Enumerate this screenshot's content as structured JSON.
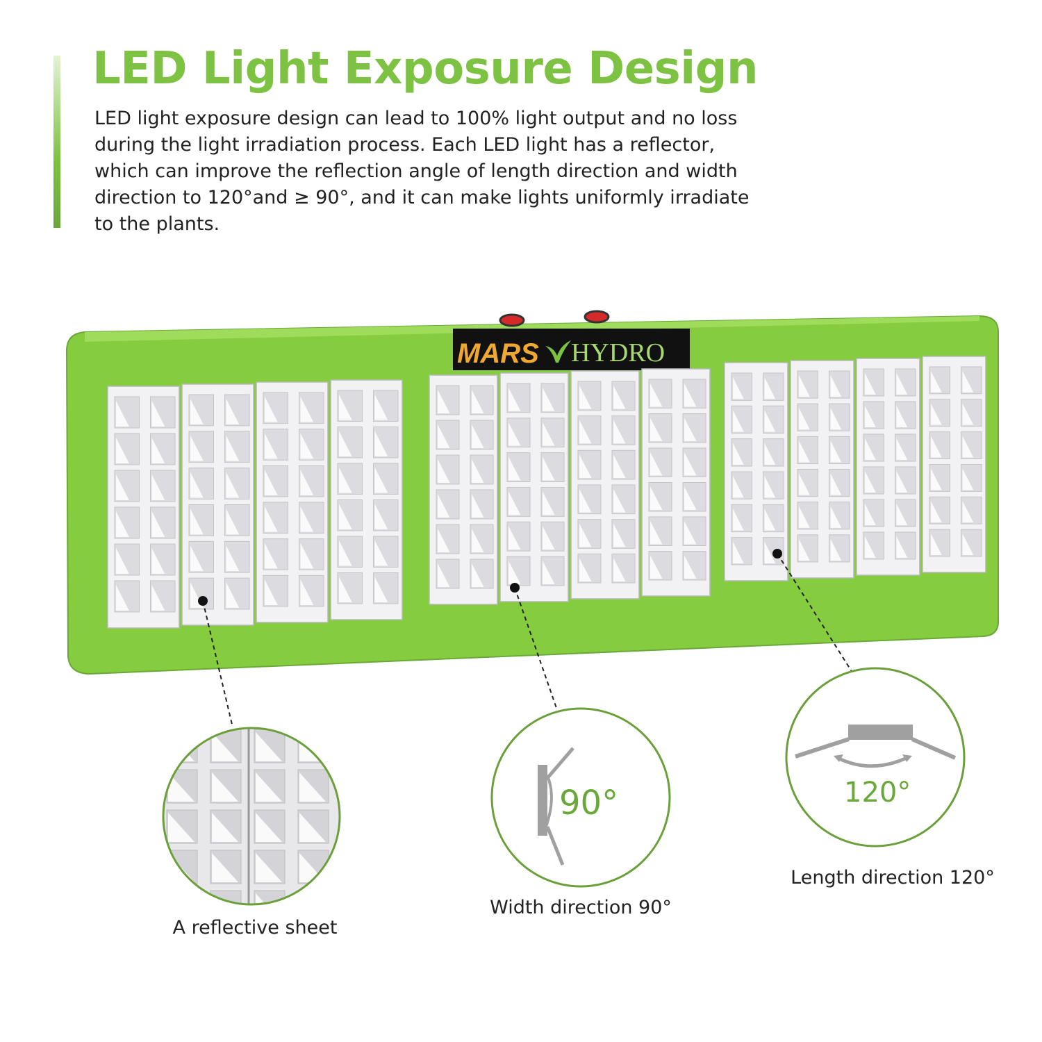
{
  "header": {
    "title": "LED Light Exposure Design",
    "description": "LED light exposure design can lead to 100% light output and no loss during the light irradiation process. Each LED light has a reflector, which can improve the reflection angle of length direction and width direction to 120°and ≥ 90°, and it can make lights uniformly irradiate to the plants."
  },
  "product": {
    "brand_logo": "MARS HYDRO",
    "panel_color": "#7dc242",
    "switch_color": "#d42a2a"
  },
  "callouts": [
    {
      "label": "A reflective sheet",
      "icon": "reflector-closeup"
    },
    {
      "label": "Width direction 90°",
      "angle_text": "90°",
      "icon": "width-angle-diagram"
    },
    {
      "label": "Length direction 120°",
      "angle_text": "120°",
      "icon": "length-angle-diagram"
    }
  ],
  "colors": {
    "accent": "#7dc242",
    "circle_stroke": "#6a9f3a",
    "diagram_gray": "#a0a0a0"
  }
}
